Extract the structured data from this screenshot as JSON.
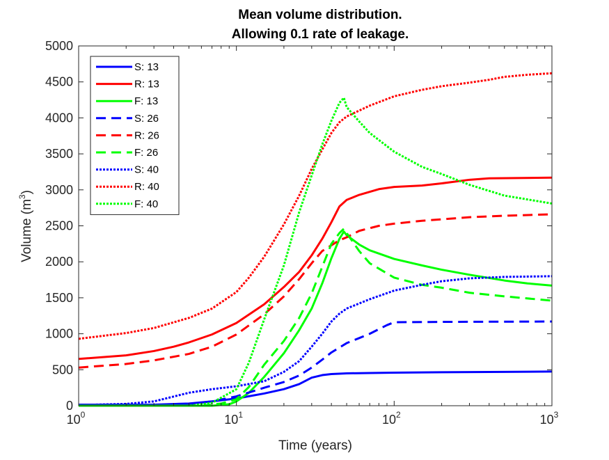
{
  "chart_data": {
    "type": "line",
    "title": [
      "Mean volume distribution.",
      "Allowing 0.1 rate of leakage."
    ],
    "xlabel": "Time (years)",
    "ylabel": "Volume (m",
    "ylabel_sup": "3",
    "ylabel_close": ")",
    "xscale": "log",
    "xlim": [
      1,
      1000
    ],
    "ylim": [
      0,
      5000
    ],
    "xtick_labels": [
      {
        "value": 1,
        "base": "10",
        "exp": "0"
      },
      {
        "value": 10,
        "base": "10",
        "exp": "1"
      },
      {
        "value": 100,
        "base": "10",
        "exp": "2"
      },
      {
        "value": 1000,
        "base": "10",
        "exp": "3"
      }
    ],
    "ytick_labels": [
      "0",
      "500",
      "1000",
      "1500",
      "2000",
      "2500",
      "3000",
      "3500",
      "4000",
      "4500",
      "5000"
    ],
    "legend_position": "top-left",
    "series": [
      {
        "name": "S: 13",
        "color": "#0000ff",
        "style": "solid",
        "points": [
          [
            1,
            15
          ],
          [
            3,
            15
          ],
          [
            5,
            30
          ],
          [
            7,
            60
          ],
          [
            10,
            100
          ],
          [
            15,
            170
          ],
          [
            20,
            230
          ],
          [
            25,
            300
          ],
          [
            30,
            390
          ],
          [
            35,
            425
          ],
          [
            40,
            440
          ],
          [
            50,
            450
          ],
          [
            70,
            455
          ],
          [
            100,
            460
          ],
          [
            200,
            465
          ],
          [
            500,
            470
          ],
          [
            1000,
            475
          ]
        ]
      },
      {
        "name": "R: 13",
        "color": "#ff0000",
        "style": "solid",
        "points": [
          [
            1,
            650
          ],
          [
            2,
            700
          ],
          [
            3,
            760
          ],
          [
            4,
            820
          ],
          [
            5,
            880
          ],
          [
            7,
            990
          ],
          [
            10,
            1150
          ],
          [
            15,
            1410
          ],
          [
            20,
            1650
          ],
          [
            25,
            1860
          ],
          [
            30,
            2090
          ],
          [
            35,
            2320
          ],
          [
            40,
            2550
          ],
          [
            45,
            2770
          ],
          [
            50,
            2860
          ],
          [
            60,
            2930
          ],
          [
            80,
            3010
          ],
          [
            100,
            3040
          ],
          [
            150,
            3060
          ],
          [
            200,
            3090
          ],
          [
            300,
            3140
          ],
          [
            400,
            3160
          ],
          [
            1000,
            3170
          ]
        ]
      },
      {
        "name": "F: 13",
        "color": "#00ff00",
        "style": "solid",
        "points": [
          [
            1,
            0
          ],
          [
            7,
            0
          ],
          [
            9,
            20
          ],
          [
            10,
            60
          ],
          [
            12,
            180
          ],
          [
            15,
            400
          ],
          [
            20,
            730
          ],
          [
            25,
            1050
          ],
          [
            30,
            1350
          ],
          [
            35,
            1700
          ],
          [
            40,
            2050
          ],
          [
            45,
            2320
          ],
          [
            48,
            2420
          ],
          [
            50,
            2370
          ],
          [
            60,
            2240
          ],
          [
            70,
            2160
          ],
          [
            100,
            2040
          ],
          [
            150,
            1950
          ],
          [
            200,
            1890
          ],
          [
            300,
            1820
          ],
          [
            500,
            1740
          ],
          [
            700,
            1700
          ],
          [
            1000,
            1670
          ]
        ]
      },
      {
        "name": "S: 26",
        "color": "#0000ff",
        "style": "dashed",
        "points": [
          [
            1,
            10
          ],
          [
            3,
            10
          ],
          [
            5,
            20
          ],
          [
            7,
            60
          ],
          [
            10,
            130
          ],
          [
            15,
            250
          ],
          [
            20,
            330
          ],
          [
            25,
            420
          ],
          [
            30,
            530
          ],
          [
            35,
            640
          ],
          [
            40,
            740
          ],
          [
            50,
            870
          ],
          [
            60,
            940
          ],
          [
            70,
            1000
          ],
          [
            90,
            1120
          ],
          [
            100,
            1160
          ],
          [
            200,
            1165
          ],
          [
            500,
            1168
          ],
          [
            1000,
            1170
          ]
        ]
      },
      {
        "name": "R: 26",
        "color": "#ff0000",
        "style": "dashed",
        "points": [
          [
            1,
            530
          ],
          [
            2,
            580
          ],
          [
            3,
            630
          ],
          [
            5,
            720
          ],
          [
            7,
            820
          ],
          [
            10,
            990
          ],
          [
            15,
            1270
          ],
          [
            20,
            1520
          ],
          [
            25,
            1760
          ],
          [
            30,
            1980
          ],
          [
            35,
            2150
          ],
          [
            40,
            2230
          ],
          [
            45,
            2300
          ],
          [
            50,
            2340
          ],
          [
            60,
            2430
          ],
          [
            80,
            2500
          ],
          [
            100,
            2530
          ],
          [
            150,
            2570
          ],
          [
            200,
            2590
          ],
          [
            300,
            2620
          ],
          [
            500,
            2640
          ],
          [
            1000,
            2660
          ]
        ]
      },
      {
        "name": "F: 26",
        "color": "#00ff00",
        "style": "dashed",
        "points": [
          [
            1,
            0
          ],
          [
            6,
            0
          ],
          [
            8,
            30
          ],
          [
            10,
            90
          ],
          [
            12,
            260
          ],
          [
            15,
            570
          ],
          [
            20,
            900
          ],
          [
            25,
            1220
          ],
          [
            30,
            1560
          ],
          [
            35,
            1930
          ],
          [
            40,
            2250
          ],
          [
            45,
            2400
          ],
          [
            48,
            2460
          ],
          [
            50,
            2400
          ],
          [
            60,
            2150
          ],
          [
            70,
            1980
          ],
          [
            100,
            1780
          ],
          [
            150,
            1680
          ],
          [
            200,
            1640
          ],
          [
            300,
            1570
          ],
          [
            500,
            1520
          ],
          [
            1000,
            1460
          ]
        ]
      },
      {
        "name": "S: 40",
        "color": "#0000ff",
        "style": "dotted",
        "points": [
          [
            1,
            10
          ],
          [
            2,
            25
          ],
          [
            3,
            60
          ],
          [
            5,
            180
          ],
          [
            7,
            230
          ],
          [
            10,
            270
          ],
          [
            15,
            340
          ],
          [
            20,
            470
          ],
          [
            25,
            620
          ],
          [
            30,
            820
          ],
          [
            35,
            1000
          ],
          [
            40,
            1170
          ],
          [
            45,
            1280
          ],
          [
            50,
            1350
          ],
          [
            70,
            1480
          ],
          [
            100,
            1600
          ],
          [
            150,
            1680
          ],
          [
            200,
            1730
          ],
          [
            300,
            1770
          ],
          [
            500,
            1790
          ],
          [
            1000,
            1800
          ]
        ]
      },
      {
        "name": "R: 40",
        "color": "#ff0000",
        "style": "dotted",
        "points": [
          [
            1,
            930
          ],
          [
            2,
            1010
          ],
          [
            3,
            1080
          ],
          [
            5,
            1220
          ],
          [
            7,
            1350
          ],
          [
            10,
            1580
          ],
          [
            12,
            1780
          ],
          [
            15,
            2070
          ],
          [
            20,
            2520
          ],
          [
            25,
            2920
          ],
          [
            30,
            3290
          ],
          [
            35,
            3560
          ],
          [
            40,
            3790
          ],
          [
            45,
            3940
          ],
          [
            50,
            4020
          ],
          [
            70,
            4170
          ],
          [
            100,
            4300
          ],
          [
            150,
            4390
          ],
          [
            200,
            4440
          ],
          [
            300,
            4490
          ],
          [
            400,
            4530
          ],
          [
            500,
            4570
          ],
          [
            700,
            4600
          ],
          [
            1000,
            4620
          ]
        ]
      },
      {
        "name": "F: 40",
        "color": "#00ff00",
        "style": "dotted",
        "points": [
          [
            1,
            0
          ],
          [
            5,
            0
          ],
          [
            7,
            40
          ],
          [
            10,
            230
          ],
          [
            12,
            600
          ],
          [
            15,
            1200
          ],
          [
            20,
            1950
          ],
          [
            25,
            2690
          ],
          [
            30,
            3200
          ],
          [
            35,
            3630
          ],
          [
            40,
            3960
          ],
          [
            45,
            4210
          ],
          [
            48,
            4280
          ],
          [
            50,
            4150
          ],
          [
            60,
            3950
          ],
          [
            70,
            3790
          ],
          [
            100,
            3530
          ],
          [
            150,
            3320
          ],
          [
            200,
            3220
          ],
          [
            300,
            3070
          ],
          [
            500,
            2920
          ],
          [
            1000,
            2810
          ]
        ]
      }
    ]
  }
}
